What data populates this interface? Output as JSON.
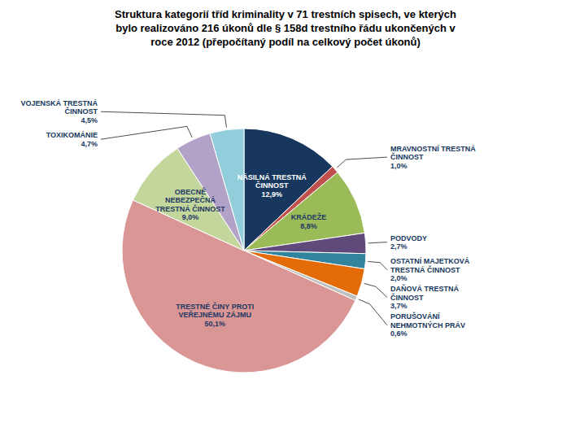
{
  "chart_data": {
    "type": "pie",
    "title": "Struktura kategorií tříd kriminality v 71 trestních spisech, ve kterých\nbylo realizováno 216 úkonů dle § 158d trestního řádu ukončených v\nroce 2012 (přepočítaný podíl na celkový počet úkonů)",
    "categories": [
      "NÁSILNÁ TRESTNÁ\nČINNOST",
      "MRAVNOSTNÍ TRESTNÁ\nČINNOST",
      "KRÁDEŽE",
      "PODVODY",
      "OSTATNÍ MAJETKOVÁ\nTRESTNÁ ČINNOST",
      "DAŇOVÁ TRESTNÁ\nČINNOST",
      "PORUŠOVÁNÍ\nNEHMOTNÝCH PRÁV",
      "TRESTNÉ ČINY PROTI\nVEŘEJNÉMU ZÁJMU",
      "OBECNĚ\nNEBEZPEČNÁ\nTRESTNÁ ČINNOST",
      "TOXIKOMÁNIE",
      "VOJENSKÁ TRESTNÁ\nČINNOST"
    ],
    "values": [
      12.9,
      1.0,
      8.8,
      2.7,
      2.0,
      3.7,
      0.6,
      50.1,
      9.0,
      4.7,
      4.5
    ],
    "value_labels": [
      "12,9%",
      "1,0%",
      "8,8%",
      "2,7%",
      "2,0%",
      "3,7%",
      "0,6%",
      "50,1%",
      "9,0%",
      "4,7%",
      "4,5%"
    ],
    "colors": [
      "#17375E",
      "#C0504D",
      "#9BBB59",
      "#604A7B",
      "#31849B",
      "#E36C09",
      "#BFC0C0",
      "#D99694",
      "#C3D69B",
      "#B3A2C7",
      "#92CDDC"
    ],
    "data_labels": true
  }
}
